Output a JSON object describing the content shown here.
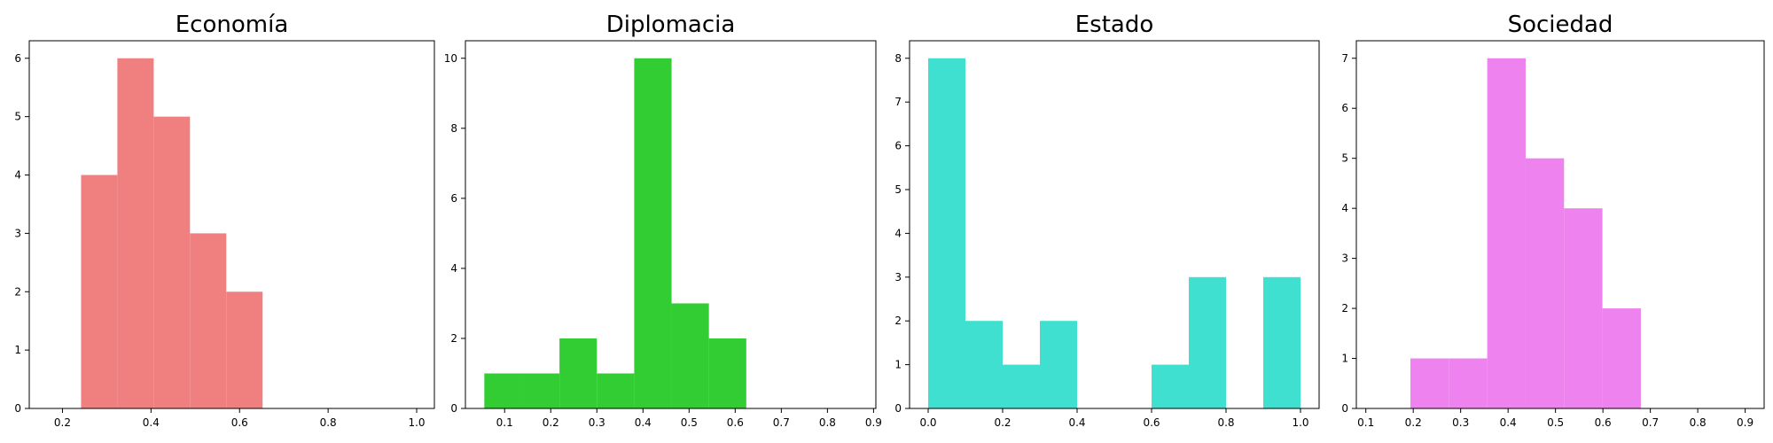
{
  "chart_data": [
    {
      "type": "bar",
      "title": "Economía",
      "color": "#F08080",
      "bins": [
        [
          0.242,
          0.324
        ],
        [
          0.324,
          0.406
        ],
        [
          0.406,
          0.488
        ],
        [
          0.488,
          0.57
        ],
        [
          0.57,
          0.652
        ]
      ],
      "values": [
        4,
        6,
        5,
        3,
        2
      ],
      "xlim": [
        0.125,
        1.04
      ],
      "ylim": [
        0,
        6.3
      ],
      "xticks": [
        0.2,
        0.4,
        0.6,
        0.8,
        1.0
      ],
      "xtick_labels": [
        "0.2",
        "0.4",
        "0.6",
        "0.8",
        "1.0"
      ],
      "yticks": [
        0,
        1,
        2,
        3,
        4,
        5,
        6
      ],
      "ytick_labels": [
        "0",
        "1",
        "2",
        "3",
        "4",
        "5",
        "6"
      ],
      "grid": false
    },
    {
      "type": "bar",
      "title": "Diplomacia",
      "color": "#32CD32",
      "bins": [
        [
          0.056,
          0.138
        ],
        [
          0.138,
          0.219
        ],
        [
          0.219,
          0.3
        ],
        [
          0.3,
          0.381
        ],
        [
          0.381,
          0.462
        ],
        [
          0.462,
          0.543
        ],
        [
          0.543,
          0.624
        ]
      ],
      "values": [
        1,
        1,
        2,
        1,
        10,
        3,
        2
      ],
      "xlim": [
        0.015,
        0.905
      ],
      "ylim": [
        0,
        10.5
      ],
      "xticks": [
        0.1,
        0.2,
        0.3,
        0.4,
        0.5,
        0.6,
        0.7,
        0.8,
        0.9
      ],
      "xtick_labels": [
        "0.1",
        "0.2",
        "0.3",
        "0.4",
        "0.5",
        "0.6",
        "0.7",
        "0.8",
        "0.9"
      ],
      "yticks": [
        0,
        2,
        4,
        6,
        8,
        10
      ],
      "ytick_labels": [
        "0",
        "2",
        "4",
        "6",
        "8",
        "10"
      ],
      "grid": false
    },
    {
      "type": "bar",
      "title": "Estado",
      "color": "#40E0D0",
      "bins": [
        [
          0.0,
          0.1
        ],
        [
          0.1,
          0.2
        ],
        [
          0.2,
          0.3
        ],
        [
          0.3,
          0.4
        ],
        [
          0.6,
          0.7
        ],
        [
          0.7,
          0.8
        ],
        [
          0.9,
          1.0
        ]
      ],
      "values": [
        8,
        2,
        1,
        2,
        1,
        3,
        3
      ],
      "xlim": [
        -0.05,
        1.05
      ],
      "ylim": [
        0,
        8.4
      ],
      "xticks": [
        0.0,
        0.2,
        0.4,
        0.6,
        0.8,
        1.0
      ],
      "xtick_labels": [
        "0.0",
        "0.2",
        "0.4",
        "0.6",
        "0.8",
        "1.0"
      ],
      "yticks": [
        0,
        1,
        2,
        3,
        4,
        5,
        6,
        7,
        8
      ],
      "ytick_labels": [
        "0",
        "1",
        "2",
        "3",
        "4",
        "5",
        "6",
        "7",
        "8"
      ],
      "grid": false
    },
    {
      "type": "bar",
      "title": "Sociedad",
      "color": "#EE82EE",
      "bins": [
        [
          0.194,
          0.275
        ],
        [
          0.275,
          0.356
        ],
        [
          0.356,
          0.437
        ],
        [
          0.437,
          0.518
        ],
        [
          0.518,
          0.599
        ],
        [
          0.599,
          0.68
        ]
      ],
      "values": [
        1,
        1,
        7,
        5,
        4,
        2
      ],
      "xlim": [
        0.08,
        0.94
      ],
      "ylim": [
        0,
        7.35
      ],
      "xticks": [
        0.1,
        0.2,
        0.3,
        0.4,
        0.5,
        0.6,
        0.7,
        0.8,
        0.9
      ],
      "xtick_labels": [
        "0.1",
        "0.2",
        "0.3",
        "0.4",
        "0.5",
        "0.6",
        "0.7",
        "0.8",
        "0.9"
      ],
      "yticks": [
        0,
        1,
        2,
        3,
        4,
        5,
        6,
        7
      ],
      "ytick_labels": [
        "0",
        "1",
        "2",
        "3",
        "4",
        "5",
        "6",
        "7"
      ],
      "grid": false
    }
  ]
}
